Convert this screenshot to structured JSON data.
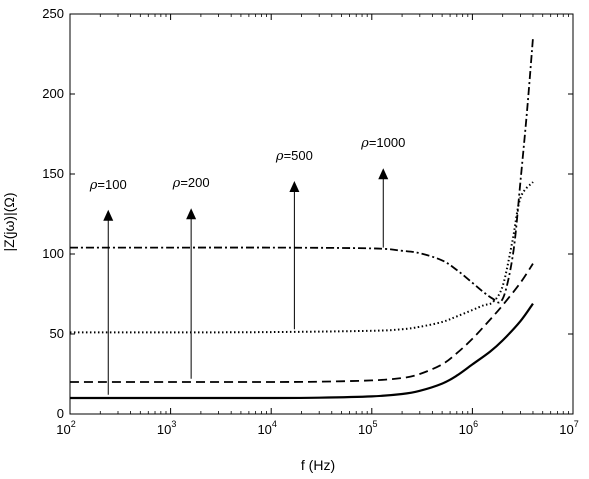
{
  "chart_data": {
    "type": "line",
    "title": "",
    "xlabel": "f (Hz)",
    "ylabel": "|Z(jω)|(Ω)",
    "xscale": "log",
    "xlim": [
      100,
      10000000
    ],
    "ylim": [
      0,
      250
    ],
    "x_ticks": [
      {
        "base": "10",
        "exp": "2"
      },
      {
        "base": "10",
        "exp": "3"
      },
      {
        "base": "10",
        "exp": "4"
      },
      {
        "base": "10",
        "exp": "5"
      },
      {
        "base": "10",
        "exp": "6"
      },
      {
        "base": "10",
        "exp": "7"
      }
    ],
    "y_ticks": [
      "0",
      "50",
      "100",
      "150",
      "200",
      "250"
    ],
    "y_tick_values": [
      0,
      50,
      100,
      150,
      200,
      250
    ],
    "grid": false,
    "series": [
      {
        "style": "solid",
        "x": [
          100,
          1000,
          10000,
          30000,
          100000,
          200000,
          300000,
          500000,
          700000,
          1000000,
          1500000,
          2000000,
          3000000,
          4000000
        ],
        "y": [
          10,
          10,
          10,
          10.2,
          11,
          12.5,
          14.5,
          19,
          24,
          31,
          39,
          46,
          58,
          69
        ]
      },
      {
        "style": "dashed",
        "x": [
          100,
          1000,
          10000,
          30000,
          100000,
          200000,
          300000,
          500000,
          700000,
          1000000,
          1500000,
          2000000,
          3000000,
          4000000
        ],
        "y": [
          20,
          20,
          20,
          20.2,
          21,
          22.5,
          25,
          31,
          38,
          47,
          59,
          68,
          82,
          94
        ]
      },
      {
        "style": "dotted",
        "x": [
          100,
          1000,
          10000,
          100000,
          200000,
          300000,
          500000,
          700000,
          1000000,
          1300000,
          1600000,
          2000000,
          2500000,
          3000000,
          4000000
        ],
        "y": [
          51,
          51,
          51.2,
          52,
          53,
          54.5,
          57.5,
          61,
          65,
          68,
          70,
          80,
          108,
          135,
          145
        ]
      },
      {
        "style": "dash-dot",
        "x": [
          100,
          1000,
          10000,
          100000,
          200000,
          300000,
          500000,
          700000,
          1000000,
          1300000,
          1600000,
          1900000,
          2200000,
          2600000,
          3000000,
          3500000,
          4000000
        ],
        "y": [
          104,
          104,
          104,
          103.5,
          102,
          100.5,
          96,
          90,
          82,
          76,
          72,
          70,
          80,
          105,
          145,
          190,
          235
        ]
      }
    ],
    "annotations": [
      {
        "label_prefix": "ρ",
        "label_rest": "=100",
        "x": 240,
        "y_from": 12,
        "y_to": 127
      },
      {
        "label_prefix": "ρ",
        "label_rest": "=200",
        "x": 1600,
        "y_from": 22,
        "y_to": 128
      },
      {
        "label_prefix": "ρ",
        "label_rest": "=500",
        "x": 17000,
        "y_from": 53,
        "y_to": 145
      },
      {
        "label_prefix": "ρ",
        "label_rest": "=1000",
        "x": 130000,
        "y_from": 104,
        "y_to": 153
      }
    ]
  }
}
